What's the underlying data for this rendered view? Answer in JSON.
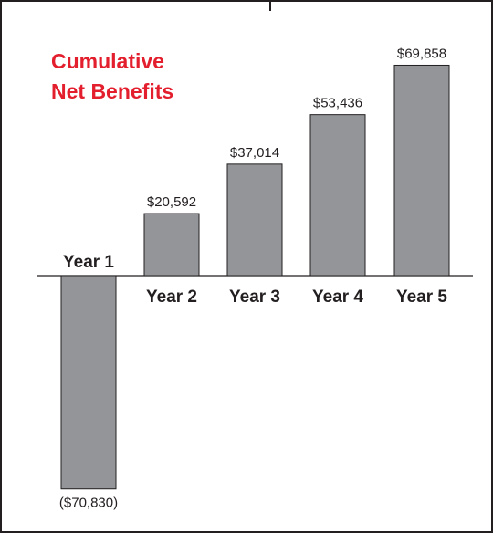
{
  "title_lines": [
    "Cumulative",
    "Net Benefits"
  ],
  "colors": {
    "title": "#e31e2d",
    "bar_fill": "#939598",
    "bar_stroke": "#231f20",
    "text": "#231f20",
    "frame": "#231f20"
  },
  "chart_data": {
    "type": "bar",
    "title": "Cumulative Net Benefits",
    "categories": [
      "Year 1",
      "Year 2",
      "Year 3",
      "Year 4",
      "Year 5"
    ],
    "values": [
      -70830,
      20592,
      37014,
      53436,
      69858
    ],
    "data_labels": [
      "($70,830)",
      "$20,592",
      "$37,014",
      "$53,436",
      "$69,858"
    ],
    "xlabel": "",
    "ylabel": "",
    "ylim": [
      -75000,
      75000
    ],
    "grid": false,
    "legend": "none"
  }
}
